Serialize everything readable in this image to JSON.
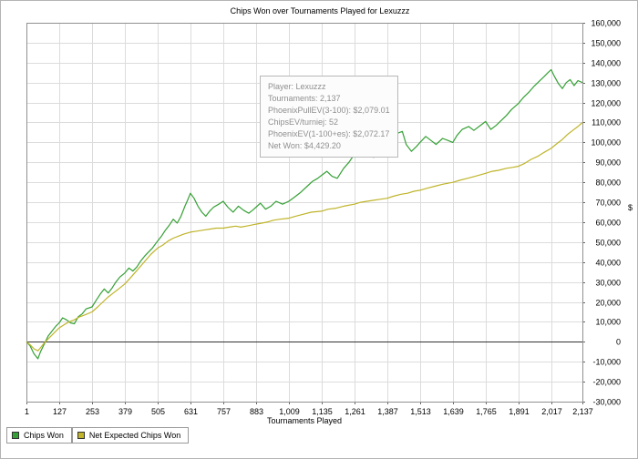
{
  "chart_data": {
    "type": "line",
    "title": "Chips Won over Tournaments Played for  Lexuzzz",
    "xlabel": "Tournaments Played",
    "ylabel": "$",
    "xlim": [
      1,
      2137
    ],
    "ylim": [
      -30000,
      160000
    ],
    "grid": true,
    "legend_position": "bottom-left",
    "x_ticks": [
      1,
      127,
      253,
      379,
      505,
      631,
      757,
      883,
      1009,
      1135,
      1261,
      1387,
      1513,
      1639,
      1765,
      1891,
      2017,
      2137
    ],
    "y_ticks": [
      160000,
      150000,
      140000,
      130000,
      120000,
      110000,
      100000,
      90000,
      80000,
      70000,
      60000,
      50000,
      40000,
      30000,
      20000,
      10000,
      0,
      -10000,
      -20000,
      -30000
    ],
    "series": [
      {
        "name": "Chips Won",
        "color": "#35a035",
        "points": [
          [
            1,
            0
          ],
          [
            15,
            -2000
          ],
          [
            30,
            -6000
          ],
          [
            45,
            -8500
          ],
          [
            55,
            -5000
          ],
          [
            70,
            -1000
          ],
          [
            85,
            3000
          ],
          [
            100,
            5500
          ],
          [
            115,
            8000
          ],
          [
            127,
            9500
          ],
          [
            140,
            12000
          ],
          [
            155,
            11000
          ],
          [
            170,
            9500
          ],
          [
            185,
            9000
          ],
          [
            200,
            12500
          ],
          [
            215,
            14000
          ],
          [
            230,
            16500
          ],
          [
            253,
            17500
          ],
          [
            270,
            21000
          ],
          [
            285,
            24000
          ],
          [
            300,
            26500
          ],
          [
            315,
            24500
          ],
          [
            330,
            27000
          ],
          [
            345,
            30000
          ],
          [
            360,
            32500
          ],
          [
            379,
            34500
          ],
          [
            395,
            37000
          ],
          [
            410,
            35500
          ],
          [
            425,
            37500
          ],
          [
            440,
            40500
          ],
          [
            455,
            43000
          ],
          [
            470,
            45000
          ],
          [
            485,
            47000
          ],
          [
            505,
            50500
          ],
          [
            520,
            53000
          ],
          [
            535,
            56000
          ],
          [
            550,
            58500
          ],
          [
            565,
            61500
          ],
          [
            580,
            59500
          ],
          [
            595,
            63000
          ],
          [
            610,
            68000
          ],
          [
            620,
            71000
          ],
          [
            631,
            74500
          ],
          [
            645,
            72000
          ],
          [
            660,
            68000
          ],
          [
            675,
            65000
          ],
          [
            690,
            63000
          ],
          [
            705,
            65500
          ],
          [
            720,
            67500
          ],
          [
            740,
            69000
          ],
          [
            757,
            70500
          ],
          [
            775,
            67500
          ],
          [
            795,
            65000
          ],
          [
            815,
            68000
          ],
          [
            835,
            66000
          ],
          [
            855,
            64500
          ],
          [
            870,
            66000
          ],
          [
            883,
            67500
          ],
          [
            900,
            69500
          ],
          [
            920,
            66500
          ],
          [
            940,
            68000
          ],
          [
            960,
            70500
          ],
          [
            985,
            69000
          ],
          [
            1009,
            70500
          ],
          [
            1030,
            72500
          ],
          [
            1055,
            75000
          ],
          [
            1080,
            78000
          ],
          [
            1100,
            80500
          ],
          [
            1120,
            82000
          ],
          [
            1135,
            83500
          ],
          [
            1155,
            85500
          ],
          [
            1175,
            83000
          ],
          [
            1195,
            82000
          ],
          [
            1220,
            87000
          ],
          [
            1240,
            90000
          ],
          [
            1261,
            94000
          ],
          [
            1280,
            97500
          ],
          [
            1300,
            99000
          ],
          [
            1315,
            95500
          ],
          [
            1335,
            92500
          ],
          [
            1355,
            96500
          ],
          [
            1370,
            98500
          ],
          [
            1387,
            100500
          ],
          [
            1405,
            102500
          ],
          [
            1425,
            104500
          ],
          [
            1445,
            105500
          ],
          [
            1460,
            99000
          ],
          [
            1480,
            95500
          ],
          [
            1500,
            98000
          ],
          [
            1513,
            100000
          ],
          [
            1535,
            103000
          ],
          [
            1555,
            101000
          ],
          [
            1575,
            99000
          ],
          [
            1600,
            102000
          ],
          [
            1620,
            101000
          ],
          [
            1639,
            100000
          ],
          [
            1655,
            103500
          ],
          [
            1675,
            106500
          ],
          [
            1700,
            108000
          ],
          [
            1720,
            106000
          ],
          [
            1740,
            108000
          ],
          [
            1765,
            110500
          ],
          [
            1785,
            106500
          ],
          [
            1805,
            108500
          ],
          [
            1825,
            111000
          ],
          [
            1845,
            113500
          ],
          [
            1865,
            116500
          ],
          [
            1891,
            119500
          ],
          [
            1910,
            122500
          ],
          [
            1930,
            125000
          ],
          [
            1950,
            128000
          ],
          [
            1970,
            130500
          ],
          [
            1990,
            133000
          ],
          [
            2005,
            135000
          ],
          [
            2017,
            136500
          ],
          [
            2030,
            133000
          ],
          [
            2045,
            129500
          ],
          [
            2060,
            127000
          ],
          [
            2075,
            130000
          ],
          [
            2090,
            131500
          ],
          [
            2105,
            128500
          ],
          [
            2120,
            131000
          ],
          [
            2137,
            130000
          ]
        ]
      },
      {
        "name": "Net Expected Chips Won",
        "color": "#bfb42a",
        "points": [
          [
            1,
            0
          ],
          [
            15,
            -1500
          ],
          [
            30,
            -3500
          ],
          [
            45,
            -4500
          ],
          [
            55,
            -3000
          ],
          [
            70,
            -500
          ],
          [
            85,
            1500
          ],
          [
            100,
            3500
          ],
          [
            115,
            5500
          ],
          [
            127,
            7000
          ],
          [
            145,
            8500
          ],
          [
            165,
            10000
          ],
          [
            185,
            11000
          ],
          [
            205,
            12500
          ],
          [
            225,
            13500
          ],
          [
            253,
            15000
          ],
          [
            275,
            17500
          ],
          [
            295,
            20000
          ],
          [
            315,
            22500
          ],
          [
            335,
            24500
          ],
          [
            355,
            26500
          ],
          [
            379,
            29000
          ],
          [
            400,
            32000
          ],
          [
            420,
            35000
          ],
          [
            440,
            38000
          ],
          [
            460,
            41000
          ],
          [
            480,
            44000
          ],
          [
            505,
            47000
          ],
          [
            525,
            48500
          ],
          [
            545,
            50500
          ],
          [
            565,
            52000
          ],
          [
            585,
            53000
          ],
          [
            605,
            54000
          ],
          [
            631,
            55000
          ],
          [
            655,
            55500
          ],
          [
            680,
            56000
          ],
          [
            705,
            56500
          ],
          [
            730,
            57000
          ],
          [
            757,
            57000
          ],
          [
            780,
            57500
          ],
          [
            805,
            58000
          ],
          [
            825,
            57500
          ],
          [
            845,
            58000
          ],
          [
            865,
            58500
          ],
          [
            883,
            59000
          ],
          [
            905,
            59500
          ],
          [
            925,
            60000
          ],
          [
            950,
            61000
          ],
          [
            975,
            61500
          ],
          [
            1009,
            62000
          ],
          [
            1035,
            63000
          ],
          [
            1065,
            64000
          ],
          [
            1095,
            65000
          ],
          [
            1135,
            65500
          ],
          [
            1160,
            66500
          ],
          [
            1190,
            67000
          ],
          [
            1220,
            68000
          ],
          [
            1261,
            69000
          ],
          [
            1285,
            70000
          ],
          [
            1310,
            70500
          ],
          [
            1335,
            71000
          ],
          [
            1360,
            71500
          ],
          [
            1387,
            72000
          ],
          [
            1410,
            73000
          ],
          [
            1440,
            74000
          ],
          [
            1465,
            74500
          ],
          [
            1490,
            75500
          ],
          [
            1513,
            76000
          ],
          [
            1540,
            77000
          ],
          [
            1570,
            78000
          ],
          [
            1600,
            79000
          ],
          [
            1639,
            80000
          ],
          [
            1665,
            81000
          ],
          [
            1695,
            82000
          ],
          [
            1725,
            83000
          ],
          [
            1765,
            84500
          ],
          [
            1790,
            85500
          ],
          [
            1815,
            86000
          ],
          [
            1845,
            87000
          ],
          [
            1870,
            87500
          ],
          [
            1891,
            88000
          ],
          [
            1915,
            89500
          ],
          [
            1940,
            91500
          ],
          [
            1965,
            93000
          ],
          [
            1990,
            95000
          ],
          [
            2017,
            97000
          ],
          [
            2040,
            99500
          ],
          [
            2060,
            101500
          ],
          [
            2080,
            104000
          ],
          [
            2100,
            106000
          ],
          [
            2120,
            108000
          ],
          [
            2137,
            110000
          ]
        ]
      }
    ],
    "colors": {
      "gridline": "#dcdcdc",
      "plot_border": "#909090",
      "zero_line": "#333333",
      "tick": "#666666"
    }
  },
  "infobox": {
    "lines": [
      "Player: Lexuzzz",
      "Tournaments: 2,137",
      "PhoenixPullEV(3-100): $2,079.01",
      "ChipsEV/turniej: 52",
      "PhoenixEV(1-100+es): $2,072.17",
      "Net Won: $4,429.20"
    ]
  }
}
